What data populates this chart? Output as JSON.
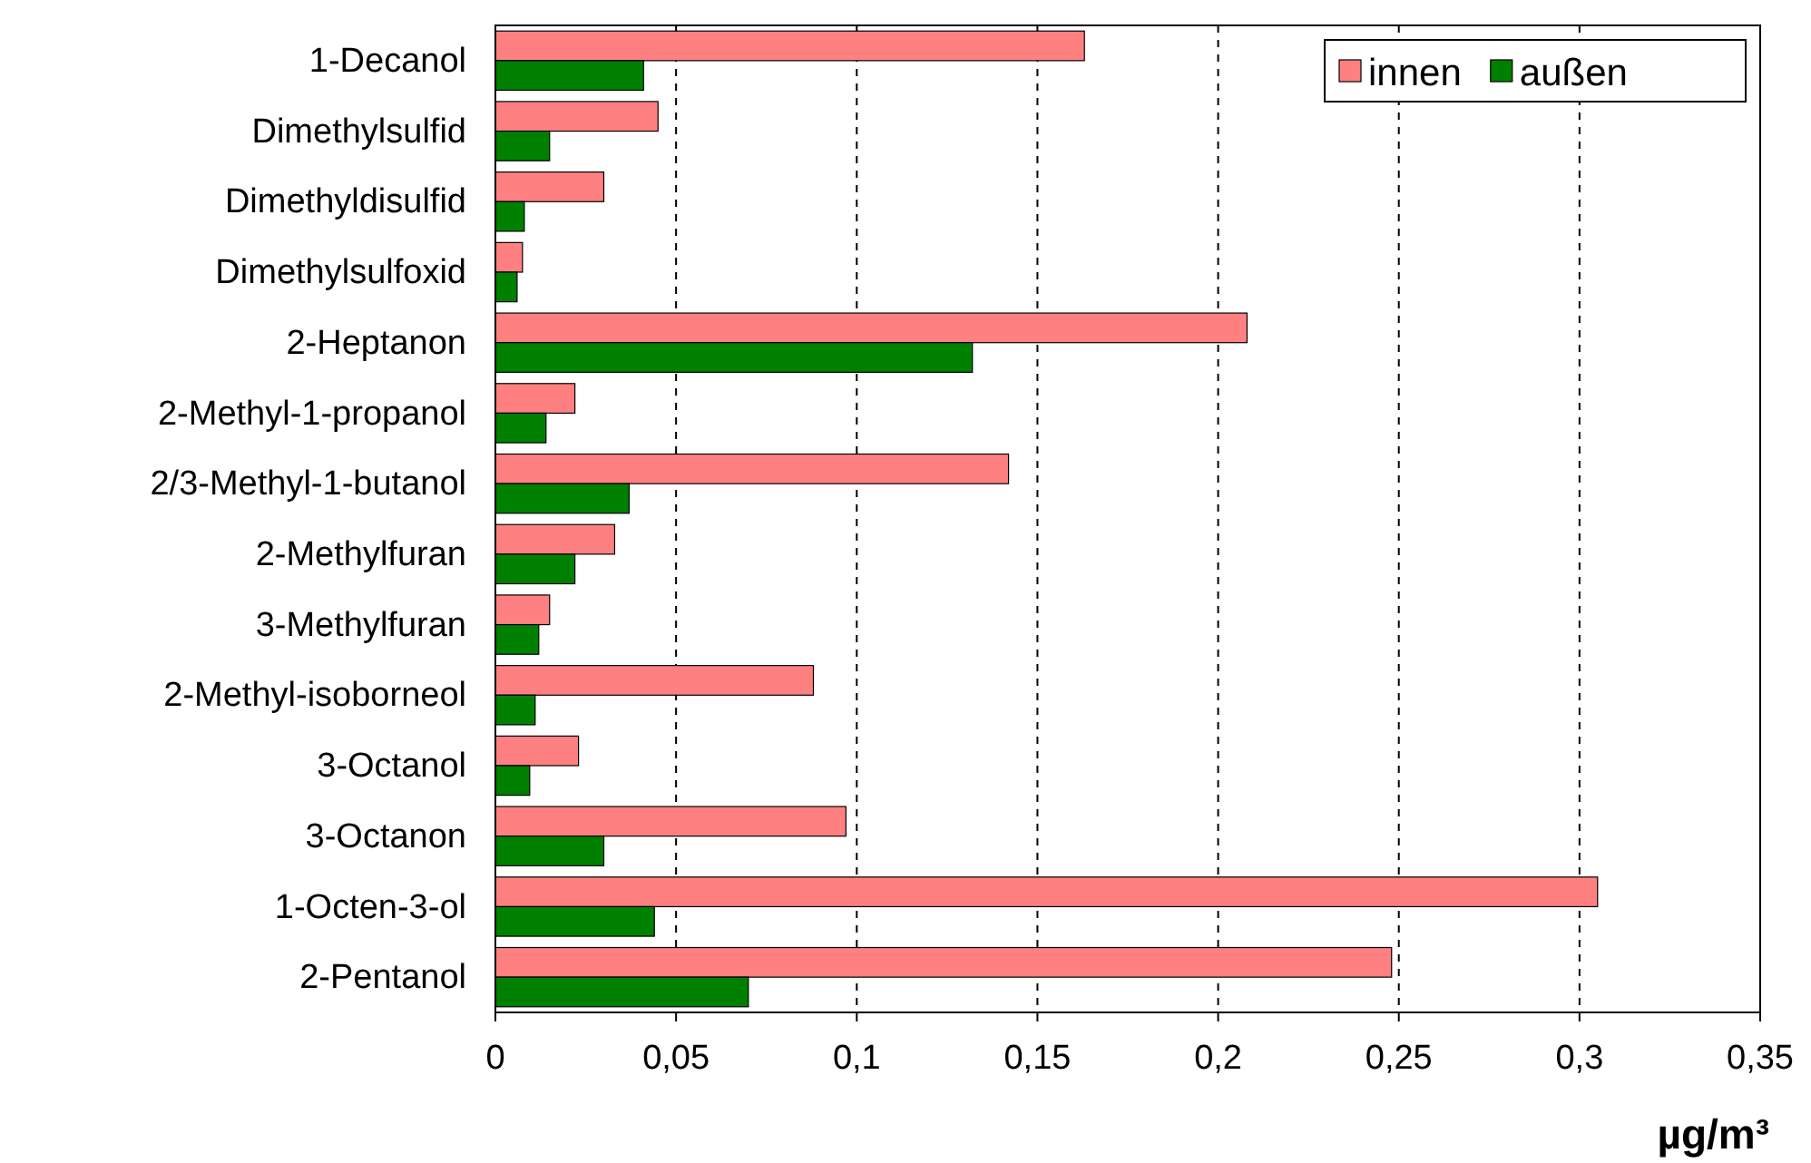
{
  "chart_data": {
    "type": "bar",
    "orientation": "horizontal",
    "xlabel": "µg/m³",
    "categories": [
      "1-Decanol",
      "Dimethylsulfid",
      "Dimethyldisulfid",
      "Dimethylsulfoxid",
      "2-Heptanon",
      "2-Methyl-1-propanol",
      "2/3-Methyl-1-butanol",
      "2-Methylfuran",
      "3-Methylfuran",
      "2-Methyl-isoborneol",
      "3-Octanol",
      "3-Octanon",
      "1-Octen-3-ol",
      "2-Pentanol"
    ],
    "series": [
      {
        "name": "innen",
        "color": "#ff8080",
        "values": [
          0.163,
          0.045,
          0.03,
          0.0075,
          0.208,
          0.022,
          0.142,
          0.033,
          0.015,
          0.088,
          0.023,
          0.097,
          0.305,
          0.248
        ]
      },
      {
        "name": "außen",
        "color": "#008000",
        "values": [
          0.041,
          0.015,
          0.008,
          0.006,
          0.132,
          0.014,
          0.037,
          0.022,
          0.012,
          0.011,
          0.0095,
          0.03,
          0.044,
          0.07
        ]
      }
    ],
    "xlim": [
      0,
      0.35
    ],
    "xticks": [
      0,
      {
        "value": 0.05,
        "label": "0,05"
      },
      {
        "value": 0.1,
        "label": "0,1"
      },
      {
        "value": 0.15,
        "label": "0,15"
      },
      {
        "value": 0.2,
        "label": "0,2"
      },
      {
        "value": 0.25,
        "label": "0,25"
      },
      {
        "value": 0.3,
        "label": "0,3"
      },
      {
        "value": 0.35,
        "label": "0,35"
      }
    ],
    "grid": "x",
    "legend": "top right"
  }
}
